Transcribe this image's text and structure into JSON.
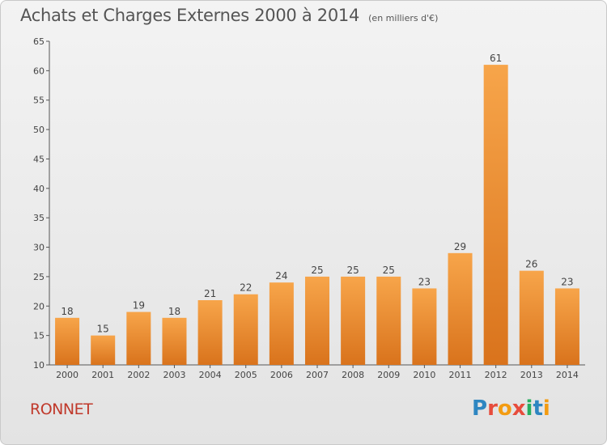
{
  "chart_data": {
    "type": "bar",
    "title": "Achats et Charges Externes 2000 à 2014",
    "subtitle": "(en milliers d'€)",
    "categories": [
      "2000",
      "2001",
      "2002",
      "2003",
      "2004",
      "2005",
      "2006",
      "2007",
      "2008",
      "2009",
      "2010",
      "2011",
      "2012",
      "2013",
      "2014"
    ],
    "values": [
      18,
      15,
      19,
      18,
      21,
      22,
      24,
      25,
      25,
      25,
      23,
      29,
      61,
      26,
      23
    ],
    "ylim": [
      10,
      65
    ],
    "yticks": [
      10,
      15,
      20,
      25,
      30,
      35,
      40,
      45,
      50,
      55,
      60,
      65
    ],
    "grid": false,
    "bar_color_top": "#f7a54a",
    "bar_color_bottom": "#d9731c"
  },
  "footer": {
    "commune": "RONNET",
    "logo_letters": [
      "P",
      "r",
      "o",
      "x",
      "i",
      "t",
      "i"
    ]
  }
}
